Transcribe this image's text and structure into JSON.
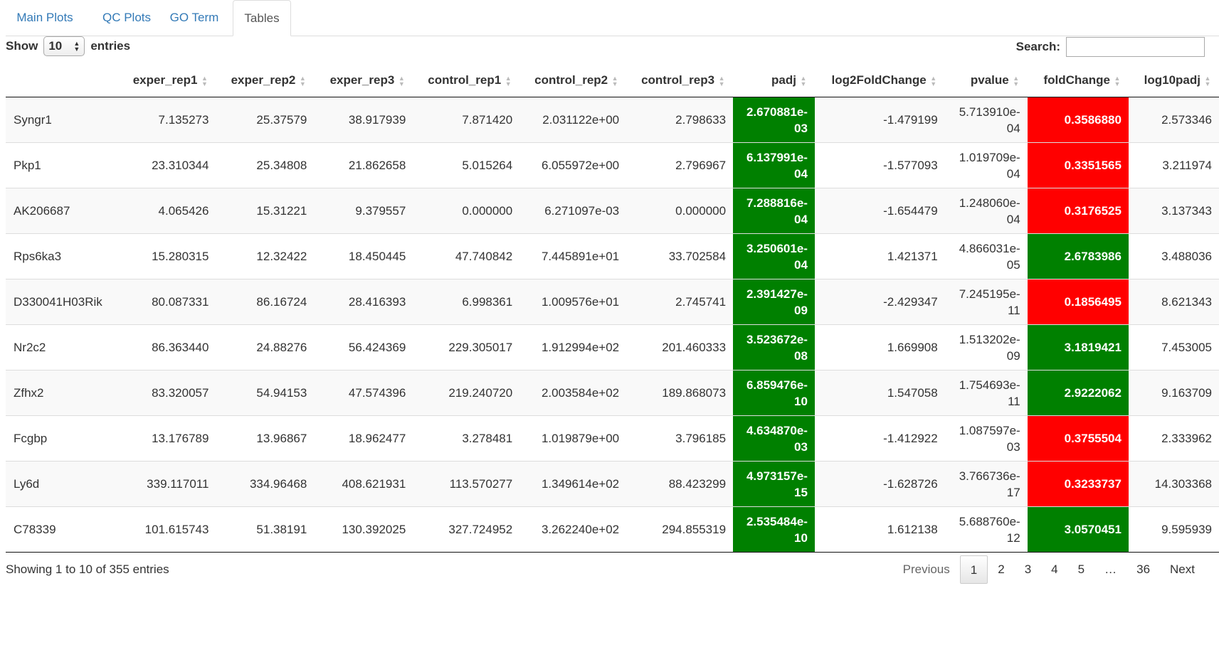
{
  "tabs": [
    {
      "label": "Main Plots",
      "active": false
    },
    {
      "label": "QC Plots",
      "active": false
    },
    {
      "label": "GO Term",
      "active": false
    },
    {
      "label": "Tables",
      "active": true
    }
  ],
  "length_control": {
    "show_label": "Show",
    "value": "10",
    "entries_label": "entries"
  },
  "search": {
    "label": "Search:",
    "value": ""
  },
  "table": {
    "columns": [
      "",
      "exper_rep1",
      "exper_rep2",
      "exper_rep3",
      "control_rep1",
      "control_rep2",
      "control_rep3",
      "padj",
      "log2FoldChange",
      "pvalue",
      "foldChange",
      "log10padj"
    ],
    "rows": [
      {
        "gene": "Syngr1",
        "cells": [
          "7.135273",
          "25.37579",
          "38.917939",
          "7.871420",
          "2.031122e+00",
          "2.798633"
        ],
        "padj": [
          "2.670881e-",
          "03"
        ],
        "log2fc": "-1.479199",
        "pvalue": [
          "5.713910e-",
          "04"
        ],
        "fc": "0.3586880",
        "fc_dir": "down",
        "log10padj": "2.573346"
      },
      {
        "gene": "Pkp1",
        "cells": [
          "23.310344",
          "25.34808",
          "21.862658",
          "5.015264",
          "6.055972e+00",
          "2.796967"
        ],
        "padj": [
          "6.137991e-",
          "04"
        ],
        "log2fc": "-1.577093",
        "pvalue": [
          "1.019709e-",
          "04"
        ],
        "fc": "0.3351565",
        "fc_dir": "down",
        "log10padj": "3.211974"
      },
      {
        "gene": "AK206687",
        "cells": [
          "4.065426",
          "15.31221",
          "9.379557",
          "0.000000",
          "6.271097e-03",
          "0.000000"
        ],
        "padj": [
          "7.288816e-",
          "04"
        ],
        "log2fc": "-1.654479",
        "pvalue": [
          "1.248060e-",
          "04"
        ],
        "fc": "0.3176525",
        "fc_dir": "down",
        "log10padj": "3.137343"
      },
      {
        "gene": "Rps6ka3",
        "cells": [
          "15.280315",
          "12.32422",
          "18.450445",
          "47.740842",
          "7.445891e+01",
          "33.702584"
        ],
        "padj": [
          "3.250601e-",
          "04"
        ],
        "log2fc": "1.421371",
        "pvalue": [
          "4.866031e-",
          "05"
        ],
        "fc": "2.6783986",
        "fc_dir": "up",
        "log10padj": "3.488036"
      },
      {
        "gene": "D330041H03Rik",
        "cells": [
          "80.087331",
          "86.16724",
          "28.416393",
          "6.998361",
          "1.009576e+01",
          "2.745741"
        ],
        "padj": [
          "2.391427e-",
          "09"
        ],
        "log2fc": "-2.429347",
        "pvalue": [
          "7.245195e-",
          "11"
        ],
        "fc": "0.1856495",
        "fc_dir": "down",
        "log10padj": "8.621343"
      },
      {
        "gene": "Nr2c2",
        "cells": [
          "86.363440",
          "24.88276",
          "56.424369",
          "229.305017",
          "1.912994e+02",
          "201.460333"
        ],
        "padj": [
          "3.523672e-",
          "08"
        ],
        "log2fc": "1.669908",
        "pvalue": [
          "1.513202e-",
          "09"
        ],
        "fc": "3.1819421",
        "fc_dir": "up",
        "log10padj": "7.453005"
      },
      {
        "gene": "Zfhx2",
        "cells": [
          "83.320057",
          "54.94153",
          "47.574396",
          "219.240720",
          "2.003584e+02",
          "189.868073"
        ],
        "padj": [
          "6.859476e-",
          "10"
        ],
        "log2fc": "1.547058",
        "pvalue": [
          "1.754693e-",
          "11"
        ],
        "fc": "2.9222062",
        "fc_dir": "up",
        "log10padj": "9.163709"
      },
      {
        "gene": "Fcgbp",
        "cells": [
          "13.176789",
          "13.96867",
          "18.962477",
          "3.278481",
          "1.019879e+00",
          "3.796185"
        ],
        "padj": [
          "4.634870e-",
          "03"
        ],
        "log2fc": "-1.412922",
        "pvalue": [
          "1.087597e-",
          "03"
        ],
        "fc": "0.3755504",
        "fc_dir": "down",
        "log10padj": "2.333962"
      },
      {
        "gene": "Ly6d",
        "cells": [
          "339.117011",
          "334.96468",
          "408.621931",
          "113.570277",
          "1.349614e+02",
          "88.423299"
        ],
        "padj": [
          "4.973157e-",
          "15"
        ],
        "log2fc": "-1.628726",
        "pvalue": [
          "3.766736e-",
          "17"
        ],
        "fc": "0.3233737",
        "fc_dir": "down",
        "log10padj": "14.303368"
      },
      {
        "gene": "C78339",
        "cells": [
          "101.615743",
          "51.38191",
          "130.392025",
          "327.724952",
          "3.262240e+02",
          "294.855319"
        ],
        "padj": [
          "2.535484e-",
          "10"
        ],
        "log2fc": "1.612138",
        "pvalue": [
          "5.688760e-",
          "12"
        ],
        "fc": "3.0570451",
        "fc_dir": "up",
        "log10padj": "9.595939"
      }
    ]
  },
  "footer": {
    "info": "Showing 1 to 10 of 355 entries",
    "pagination": {
      "previous": "Previous",
      "pages": [
        "1",
        "2",
        "3",
        "4",
        "5"
      ],
      "ellipsis": "…",
      "last": "36",
      "next": "Next",
      "current": "1"
    }
  },
  "colors": {
    "significant": "#008000",
    "down": "#ff0000",
    "link": "#337ab7"
  }
}
